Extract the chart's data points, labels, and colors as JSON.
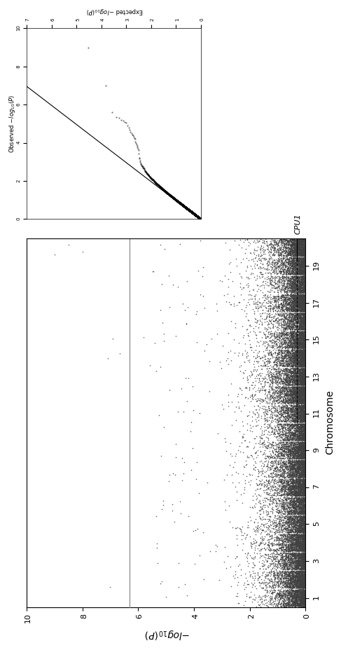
{
  "ylabel": "-log₁₀(P)",
  "xlabel": "Chromosome",
  "n_chromosomes": 20,
  "chr_labels": [
    1,
    3,
    5,
    7,
    9,
    11,
    13,
    15,
    17,
    19
  ],
  "ylim": [
    0,
    10
  ],
  "xlim": [
    0.5,
    20.5
  ],
  "significance_threshold": 6.3,
  "main_color_odd": "#404040",
  "main_color_even": "#404040",
  "scatter_size": 1.2,
  "qq_obs_label": "Observed -log₁₀(P)",
  "qq_exp_label": "Expected -log₁₀(P)",
  "qq_xlim": [
    0,
    10
  ],
  "qq_ylim": [
    0,
    7
  ],
  "background_color": "#ffffff",
  "cpu1_label": "CPU1",
  "figure_width": 9.07,
  "figure_height": 4.98
}
